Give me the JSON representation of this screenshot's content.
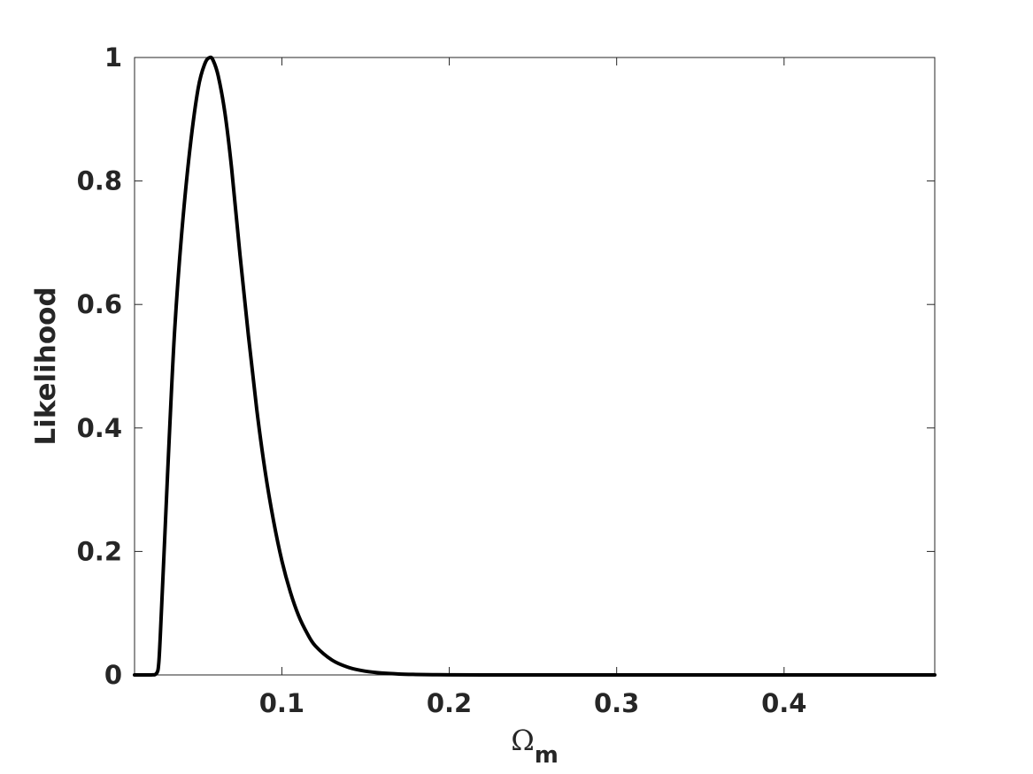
{
  "chart_data": {
    "type": "line",
    "title": "",
    "xlabel": "Ω",
    "xlabel_subscript": "m",
    "ylabel": "Likelihood",
    "xlim": [
      0.012,
      0.49
    ],
    "ylim": [
      0,
      1
    ],
    "xticks": [
      0.1,
      0.2,
      0.3,
      0.4
    ],
    "xtick_labels": [
      "0.1",
      "0.2",
      "0.3",
      "0.4"
    ],
    "yticks": [
      0,
      0.2,
      0.4,
      0.6,
      0.8,
      1
    ],
    "ytick_labels": [
      "0",
      "0.2",
      "0.4",
      "0.6",
      "0.8",
      "1"
    ],
    "grid": false,
    "line_color": "#000000",
    "series": [
      {
        "x": [
          0.012,
          0.022,
          0.025,
          0.0265,
          0.028,
          0.03,
          0.033,
          0.036,
          0.04,
          0.045,
          0.05,
          0.054,
          0.057,
          0.059,
          0.062,
          0.066,
          0.07,
          0.075,
          0.08,
          0.085,
          0.09,
          0.095,
          0.1,
          0.105,
          0.11,
          0.115,
          0.12,
          0.13,
          0.14,
          0.15,
          0.16,
          0.17,
          0.18,
          0.19,
          0.2,
          0.22,
          0.25,
          0.3,
          0.35,
          0.4,
          0.45,
          0.49
        ],
        "y": [
          0,
          0,
          0.002,
          0.02,
          0.1,
          0.22,
          0.4,
          0.56,
          0.71,
          0.85,
          0.95,
          0.99,
          1.0,
          0.995,
          0.97,
          0.91,
          0.82,
          0.68,
          0.55,
          0.43,
          0.33,
          0.25,
          0.185,
          0.135,
          0.096,
          0.068,
          0.047,
          0.024,
          0.012,
          0.006,
          0.003,
          0.0015,
          0.0008,
          0.0004,
          0.0002,
          5e-05,
          0,
          0,
          0,
          0,
          0,
          0
        ]
      }
    ]
  }
}
